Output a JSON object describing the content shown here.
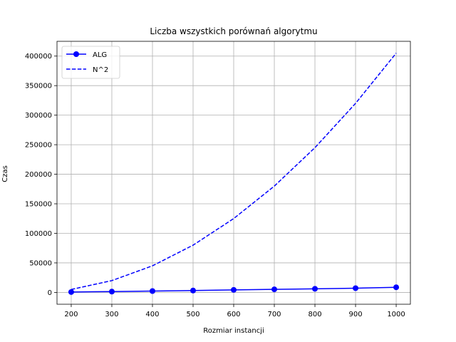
{
  "chart_data": {
    "type": "line",
    "title": "Liczba wszystkich porównań algorytmu",
    "xlabel": "Rozmiar instancji",
    "ylabel": "Czas",
    "xlim": [
      165,
      1035
    ],
    "ylim": [
      -20000,
      425000
    ],
    "x_ticks": [
      200,
      300,
      400,
      500,
      600,
      700,
      800,
      900,
      1000
    ],
    "y_ticks": [
      0,
      50000,
      100000,
      150000,
      200000,
      250000,
      300000,
      350000,
      400000
    ],
    "grid": true,
    "legend_position": "upper-left",
    "x": [
      200,
      300,
      400,
      500,
      600,
      700,
      800,
      900,
      1000
    ],
    "series": [
      {
        "name": "ALG",
        "values": [
          700,
          1400,
          2300,
          3200,
          4300,
          5200,
          6100,
          7200,
          8700
        ],
        "color": "#0000ff",
        "style": "solid",
        "marker": "circle"
      },
      {
        "name": "N^2",
        "values": [
          5000,
          20000,
          45000,
          80000,
          125000,
          180000,
          245000,
          320000,
          405000
        ],
        "color": "#0000ff",
        "style": "dashed",
        "marker": "none"
      }
    ]
  }
}
